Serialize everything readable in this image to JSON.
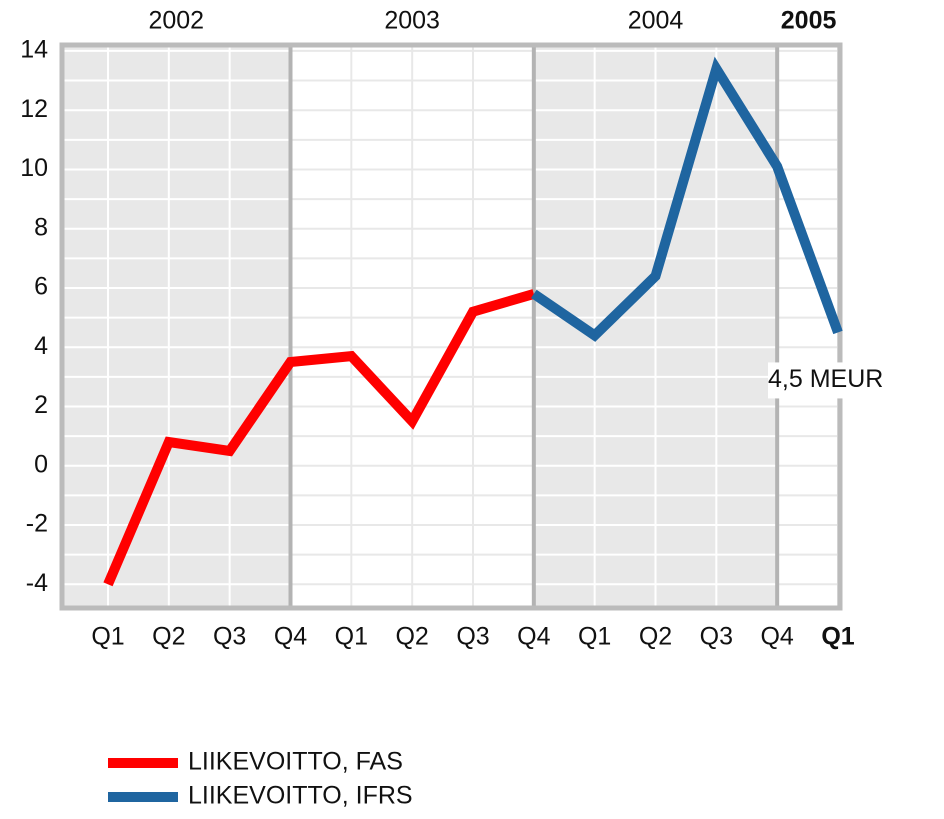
{
  "chart_data": {
    "type": "line",
    "years": [
      "2002",
      "2003",
      "2004",
      "2005"
    ],
    "categories": [
      "Q1",
      "Q2",
      "Q3",
      "Q4",
      "Q1",
      "Q2",
      "Q3",
      "Q4",
      "Q1",
      "Q2",
      "Q3",
      "Q4",
      "Q1"
    ],
    "series": [
      {
        "name": "LIIKEVOITTO, FAS",
        "color": "#ff0000",
        "values": [
          -4,
          0.8,
          0.5,
          3.5,
          3.7,
          1.5,
          5.2,
          5.8,
          null,
          null,
          null,
          null,
          null
        ]
      },
      {
        "name": "LIIKEVOITTO, IFRS",
        "color": "#1f65a0",
        "values": [
          null,
          null,
          null,
          null,
          null,
          null,
          null,
          5.8,
          4.4,
          6.4,
          13.4,
          10.1,
          4.5
        ],
        "value_labels": [
          null,
          null,
          null,
          null,
          null,
          null,
          null,
          null,
          null,
          null,
          null,
          null,
          "4,5 MEUR"
        ]
      }
    ],
    "ylim": [
      -4.8,
      14.2
    ],
    "yticks": [
      -4,
      -2,
      0,
      2,
      4,
      6,
      8,
      10,
      12,
      14
    ],
    "grid": true
  }
}
